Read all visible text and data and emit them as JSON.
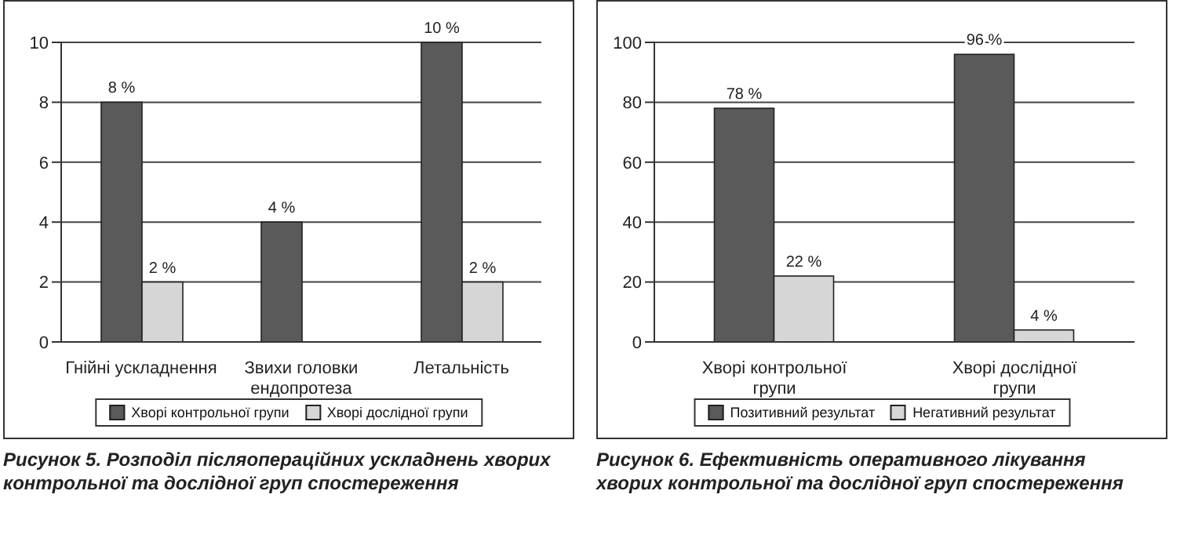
{
  "chart_data": [
    {
      "type": "bar",
      "categories": [
        "Гнійні ускладнення",
        "Звихи головки ендопротеза",
        "Летальність"
      ],
      "series": [
        {
          "name": "Хворі контрольної групи",
          "color": "#5a5a5a",
          "values": [
            8,
            4,
            10
          ],
          "value_labels": [
            "8 %",
            "4 %",
            "10 %"
          ]
        },
        {
          "name": "Хворі дослідної групи",
          "color": "#d6d6d6",
          "values": [
            2,
            0,
            2
          ],
          "value_labels": [
            "2 %",
            null,
            "2 %"
          ]
        }
      ],
      "ylim": [
        0,
        10
      ],
      "yticks": [
        0,
        2,
        4,
        6,
        8,
        10
      ],
      "grid": "y",
      "legend": "bottom",
      "annotations": [
        "Рисунок 5. Розподіл післяопераційних ускладнень хворих контрольної та дослідної груп спостереження"
      ]
    },
    {
      "type": "bar",
      "categories": [
        "Хворі контрольної групи",
        "Хворі дослідної групи"
      ],
      "series": [
        {
          "name": "Позитивний результат",
          "color": "#5a5a5a",
          "values": [
            78,
            96
          ],
          "value_labels": [
            "78 %",
            "96 %"
          ]
        },
        {
          "name": "Негативний результат",
          "color": "#d6d6d6",
          "values": [
            22,
            4
          ],
          "value_labels": [
            "22 %",
            "4 %"
          ]
        }
      ],
      "ylim": [
        0,
        100
      ],
      "yticks": [
        0,
        20,
        40,
        60,
        80,
        100
      ],
      "grid": "y",
      "legend": "bottom",
      "annotations": [
        "Рисунок 6. Ефективність оперативного лікування хворих контрольної та дослідної груп спостереження"
      ]
    }
  ]
}
